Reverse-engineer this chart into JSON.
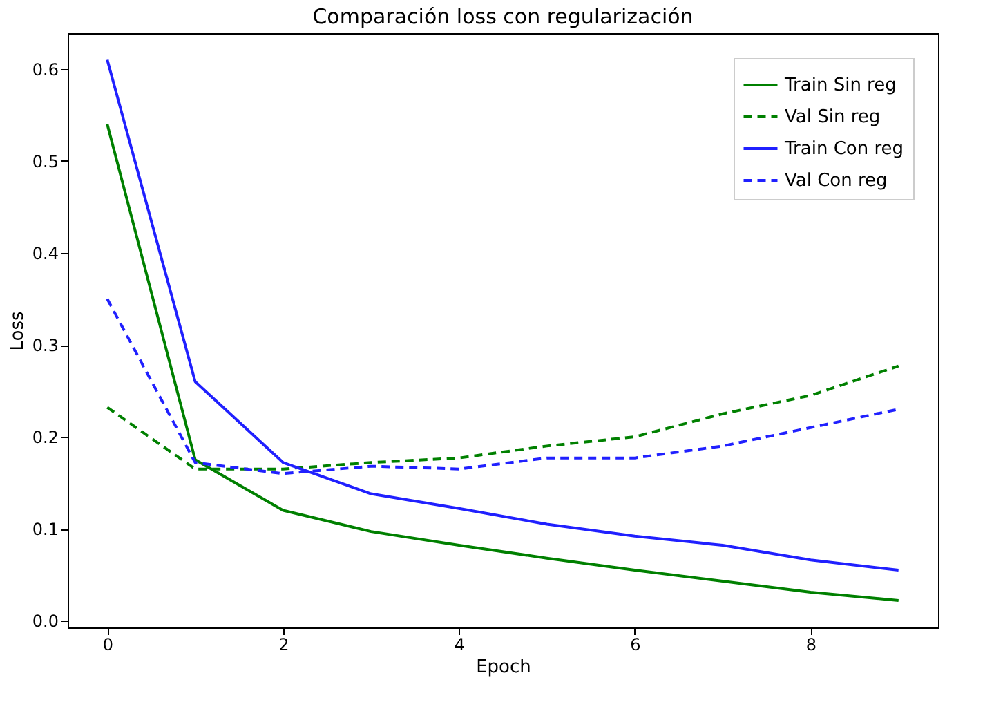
{
  "chart_data": {
    "type": "line",
    "title": "Comparación loss con regularización",
    "xlabel": "Epoch",
    "ylabel": "Loss",
    "x": [
      0,
      1,
      2,
      3,
      4,
      5,
      6,
      7,
      8,
      9
    ],
    "series": [
      {
        "name": "Train Sin reg",
        "color": "#008000",
        "line_style": "solid",
        "values": [
          0.54,
          0.175,
          0.12,
          0.097,
          0.082,
          0.068,
          0.055,
          0.043,
          0.031,
          0.022
        ]
      },
      {
        "name": "Val Sin reg",
        "color": "#008000",
        "line_style": "dashed",
        "values": [
          0.232,
          0.165,
          0.165,
          0.172,
          0.177,
          0.19,
          0.2,
          0.225,
          0.245,
          0.277
        ]
      },
      {
        "name": "Train Con reg",
        "color": "#2020ff",
        "line_style": "solid",
        "values": [
          0.61,
          0.26,
          0.172,
          0.138,
          0.122,
          0.105,
          0.092,
          0.082,
          0.066,
          0.055
        ]
      },
      {
        "name": "Val Con reg",
        "color": "#2020ff",
        "line_style": "dashed",
        "values": [
          0.35,
          0.172,
          0.16,
          0.168,
          0.165,
          0.177,
          0.177,
          0.19,
          0.21,
          0.23
        ]
      }
    ],
    "xlim": [
      -0.45,
      9.45
    ],
    "xticks": [
      0,
      2,
      4,
      6,
      8
    ],
    "ylim": [
      -0.0074,
      0.639
    ],
    "yticks": [
      {
        "value": 0,
        "label": "0.0"
      },
      0.1,
      0.2,
      0.3,
      0.4,
      0.5,
      0.6
    ],
    "grid": false,
    "legend": "top right",
    "marker": "none"
  }
}
